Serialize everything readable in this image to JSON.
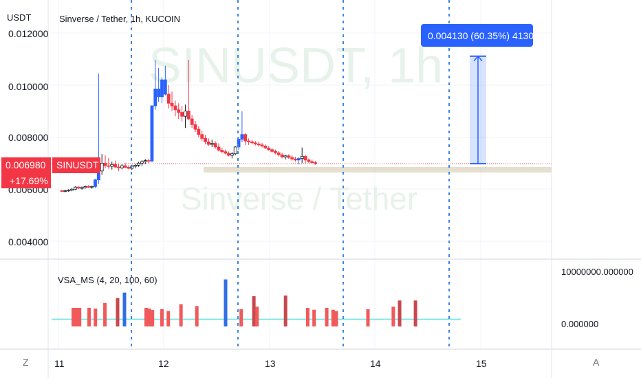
{
  "header": {
    "unit": "USDT",
    "title": "Sinverse / Tether, 1h, KUCOIN"
  },
  "watermark": {
    "symbol": "SINUSDT, 1h",
    "name": "Sinverse / Tether"
  },
  "price_axis": {
    "ticks": [
      "0.012000",
      "0.010000",
      "0.008000",
      "0.006000",
      "0.004000"
    ]
  },
  "last_price": {
    "value": "0.006980",
    "change": "+17.69%",
    "symbol": "SINUSDT"
  },
  "measure_tooltip": "0.004130 (60.35%) 4130",
  "indicator": {
    "label": "VSA_MS (4, 20, 100, 60)",
    "axis_ticks": [
      "10000000.000000",
      "0.000000"
    ]
  },
  "time_axis": {
    "ticks": [
      "11",
      "12",
      "13",
      "14",
      "15"
    ]
  },
  "corner_buttons": {
    "zoom": "Z",
    "auto": "A"
  },
  "colors": {
    "up": "#ffffff",
    "up_border": "#131722",
    "down": "#f23645",
    "highlight_candle": "#2962ff",
    "accent": "#2962ff",
    "price_line": "#f23645",
    "vsa_line": "#7ee8e8",
    "vsa_bar": "#f05a5a",
    "vsa_bar_dark": "#c8484f",
    "vsa_blue": "#2f6fe4",
    "grid": "#f0f3fa",
    "dash": "#3b86e0",
    "band": "#cec4a6"
  },
  "chart_data": [
    {
      "type": "candlestick",
      "title": "Sinverse / Tether, 1h, KUCOIN",
      "ylabel": "USDT",
      "ylim": [
        0.0035,
        0.0124
      ],
      "x_labels": [
        "11",
        "12",
        "13",
        "14",
        "15"
      ],
      "ohlc": [
        [
          0.00594,
          0.00598,
          0.0059,
          0.00592
        ],
        [
          0.00592,
          0.00598,
          0.00588,
          0.00594
        ],
        [
          0.00594,
          0.006,
          0.0059,
          0.00596
        ],
        [
          0.00596,
          0.00604,
          0.00592,
          0.006
        ],
        [
          0.006,
          0.00612,
          0.00596,
          0.00608
        ],
        [
          0.00608,
          0.00612,
          0.006,
          0.00604
        ],
        [
          0.00604,
          0.0061,
          0.00598,
          0.00606
        ],
        [
          0.00606,
          0.00614,
          0.00602,
          0.0061
        ],
        [
          0.0061,
          0.00616,
          0.00604,
          0.00608
        ],
        [
          0.00608,
          0.00614,
          0.00602,
          0.0061
        ],
        [
          0.0061,
          0.0064,
          0.00605,
          0.00636
        ],
        [
          0.00636,
          0.01044,
          0.0062,
          0.0067
        ],
        [
          0.0067,
          0.00735,
          0.00655,
          0.007
        ],
        [
          0.007,
          0.0073,
          0.0068,
          0.0069
        ],
        [
          0.0069,
          0.0072,
          0.00678,
          0.00688
        ],
        [
          0.00688,
          0.00706,
          0.00675,
          0.00695
        ],
        [
          0.00695,
          0.0071,
          0.0068,
          0.00685
        ],
        [
          0.00685,
          0.00698,
          0.0067,
          0.00682
        ],
        [
          0.00682,
          0.00696,
          0.00676,
          0.0069
        ],
        [
          0.0069,
          0.007,
          0.0068,
          0.00684
        ],
        [
          0.00684,
          0.00692,
          0.00676,
          0.0068
        ],
        [
          0.0068,
          0.00694,
          0.00674,
          0.00688
        ],
        [
          0.00688,
          0.00698,
          0.0068,
          0.00692
        ],
        [
          0.00692,
          0.00705,
          0.00686,
          0.007
        ],
        [
          0.007,
          0.00712,
          0.0069,
          0.00706
        ],
        [
          0.00706,
          0.00716,
          0.00696,
          0.0071
        ],
        [
          0.0071,
          0.00718,
          0.007,
          0.00708
        ],
        [
          0.00708,
          0.00922,
          0.00704,
          0.0092
        ],
        [
          0.0092,
          0.01096,
          0.00905,
          0.00985
        ],
        [
          0.00985,
          0.01066,
          0.00935,
          0.00955
        ],
        [
          0.00955,
          0.0103,
          0.0093,
          0.0102
        ],
        [
          0.0102,
          0.01074,
          0.0096,
          0.00965
        ],
        [
          0.00965,
          0.01,
          0.0091,
          0.0093
        ],
        [
          0.0093,
          0.00975,
          0.009,
          0.0092
        ],
        [
          0.0092,
          0.0094,
          0.0088,
          0.00905
        ],
        [
          0.00905,
          0.0093,
          0.0087,
          0.00895
        ],
        [
          0.00895,
          0.0092,
          0.0086,
          0.0088
        ],
        [
          0.0088,
          0.00925,
          0.00835,
          0.009
        ],
        [
          0.009,
          0.01097,
          0.00865,
          0.0087
        ],
        [
          0.0087,
          0.00885,
          0.00835,
          0.00848
        ],
        [
          0.00848,
          0.00862,
          0.0082,
          0.0083
        ],
        [
          0.0083,
          0.00842,
          0.008,
          0.0081
        ],
        [
          0.0081,
          0.00825,
          0.00785,
          0.00795
        ],
        [
          0.00795,
          0.00808,
          0.00772,
          0.00782
        ],
        [
          0.00782,
          0.00795,
          0.00766,
          0.00772
        ],
        [
          0.00772,
          0.0079,
          0.00762,
          0.00776
        ],
        [
          0.00776,
          0.00784,
          0.00755,
          0.00762
        ],
        [
          0.00762,
          0.00776,
          0.00745,
          0.0075
        ],
        [
          0.0075,
          0.0076,
          0.00738,
          0.00744
        ],
        [
          0.00744,
          0.00752,
          0.00734,
          0.00738
        ],
        [
          0.00738,
          0.00745,
          0.00726,
          0.0073
        ],
        [
          0.0073,
          0.00742,
          0.00718,
          0.00736
        ],
        [
          0.00736,
          0.00765,
          0.0073,
          0.00762
        ],
        [
          0.00762,
          0.008,
          0.0075,
          0.00792
        ],
        [
          0.00792,
          0.00899,
          0.0078,
          0.0081
        ],
        [
          0.0081,
          0.00815,
          0.0077,
          0.00785
        ],
        [
          0.00785,
          0.00795,
          0.0077,
          0.00782
        ],
        [
          0.00782,
          0.0079,
          0.00772,
          0.00778
        ],
        [
          0.00778,
          0.00785,
          0.00768,
          0.00774
        ],
        [
          0.00774,
          0.00782,
          0.00764,
          0.0077
        ],
        [
          0.0077,
          0.00778,
          0.0076,
          0.00766
        ],
        [
          0.00766,
          0.00772,
          0.00754,
          0.00758
        ],
        [
          0.00758,
          0.00766,
          0.00748,
          0.00752
        ],
        [
          0.00752,
          0.00758,
          0.0074,
          0.00745
        ],
        [
          0.00745,
          0.00752,
          0.00734,
          0.0074
        ],
        [
          0.0074,
          0.00746,
          0.00726,
          0.00732
        ],
        [
          0.00732,
          0.0074,
          0.00718,
          0.00724
        ],
        [
          0.00724,
          0.00732,
          0.00714,
          0.00728
        ],
        [
          0.00728,
          0.00734,
          0.00716,
          0.00722
        ],
        [
          0.00722,
          0.0073,
          0.0071,
          0.00716
        ],
        [
          0.00716,
          0.00724,
          0.00706,
          0.00712
        ],
        [
          0.00712,
          0.00722,
          0.00695,
          0.00718
        ],
        [
          0.00718,
          0.0076,
          0.007,
          0.00726
        ],
        [
          0.00726,
          0.00732,
          0.007,
          0.00712
        ],
        [
          0.00712,
          0.00718,
          0.007,
          0.00706
        ],
        [
          0.00706,
          0.00714,
          0.00698,
          0.00702
        ],
        [
          0.00702,
          0.00708,
          0.00694,
          0.00698
        ]
      ],
      "last_price": 0.00698,
      "measure": {
        "from": 0.00698,
        "to": 0.01111,
        "delta": 0.00413,
        "percent": 60.35,
        "ticks": 4130
      }
    },
    {
      "type": "bar",
      "title": "VSA_MS (4, 20, 100, 60)",
      "ylim": [
        0,
        10000000
      ],
      "volume_bars": [
        {
          "i": 2,
          "top": 0.3
        },
        {
          "i": 3,
          "top": 0.3
        },
        {
          "i": 4,
          "top": 0.3
        },
        {
          "i": 7,
          "top": 0.3
        },
        {
          "i": 9,
          "top": 0.29
        },
        {
          "i": 12,
          "top": 0.38
        },
        {
          "i": 16,
          "top": 0.46
        },
        {
          "i": 25,
          "top": 0.3
        },
        {
          "i": 26,
          "top": 0.29
        },
        {
          "i": 27,
          "top": 0.265
        },
        {
          "i": 30,
          "top": 0.28
        },
        {
          "i": 32,
          "top": 0.25
        },
        {
          "i": 36,
          "top": 0.36
        },
        {
          "i": 41,
          "top": 0.33
        },
        {
          "i": 55,
          "top": 0.28
        },
        {
          "i": 59,
          "top": 0.49
        },
        {
          "i": 60,
          "top": 0.32
        },
        {
          "i": 69,
          "top": 0.5
        },
        {
          "i": 76,
          "top": 0.3
        },
        {
          "i": 78,
          "top": 0.27
        },
        {
          "i": 82,
          "top": 0.3
        },
        {
          "i": 84,
          "top": 0.27
        },
        {
          "i": 85,
          "top": 0.25
        },
        {
          "i": 95,
          "top": 0.28
        },
        {
          "i": 103,
          "top": 0.32
        },
        {
          "i": 105,
          "top": 0.42
        },
        {
          "i": 110,
          "top": 0.42
        }
      ],
      "highlight_bars": [
        {
          "i": 13,
          "top": 0.85
        },
        {
          "i": 33,
          "top": 1.18
        }
      ],
      "threshold": 0.115
    }
  ]
}
